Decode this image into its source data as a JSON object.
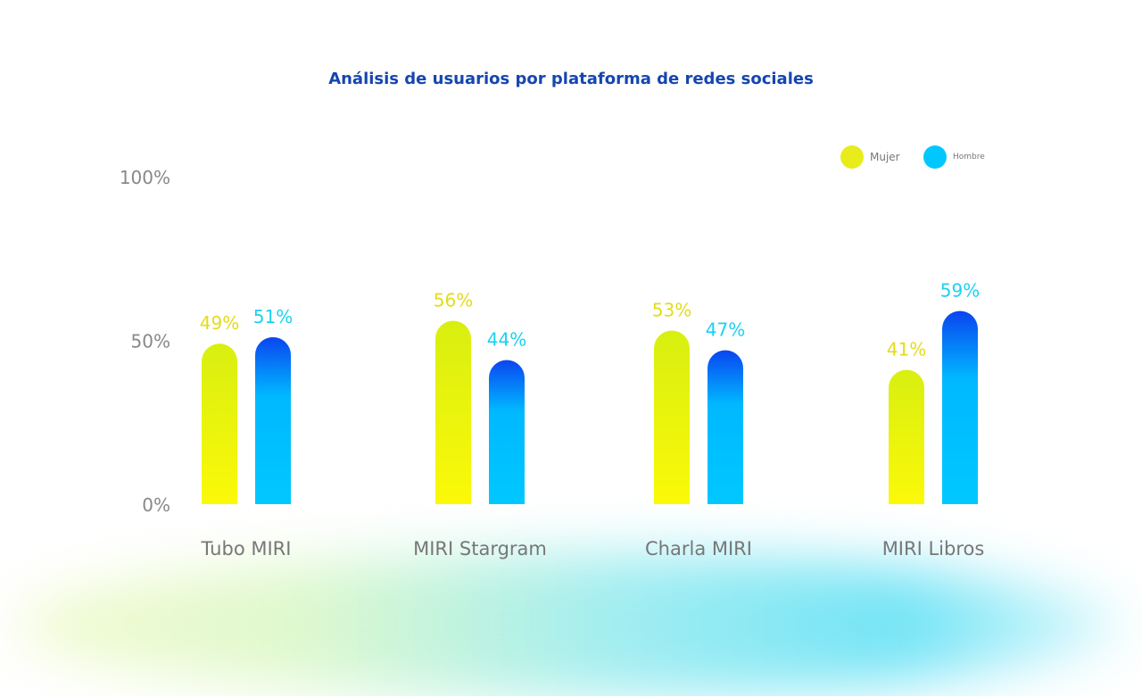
{
  "chart_data": {
    "type": "bar",
    "title": "Análisis de usuarios por plataforma de redes sociales",
    "categories": [
      "Tubo MIRI",
      "MIRI Stargram",
      "Charla MIRI",
      "MIRI Libros"
    ],
    "series": [
      {
        "name": "Mujer",
        "values": [
          49,
          56,
          53,
          41
        ],
        "color": "#e8ec1a",
        "label_color": "#e3dc1a"
      },
      {
        "name": "Hombre",
        "values": [
          51,
          44,
          47,
          59
        ],
        "color": "#00c8ff",
        "label_color": "#1ad2f2"
      }
    ],
    "ylim": [
      0,
      100
    ],
    "yticks": [
      "0%",
      "50%",
      "100%"
    ],
    "value_suffix": "%",
    "legend": "top-right",
    "grid": false
  }
}
